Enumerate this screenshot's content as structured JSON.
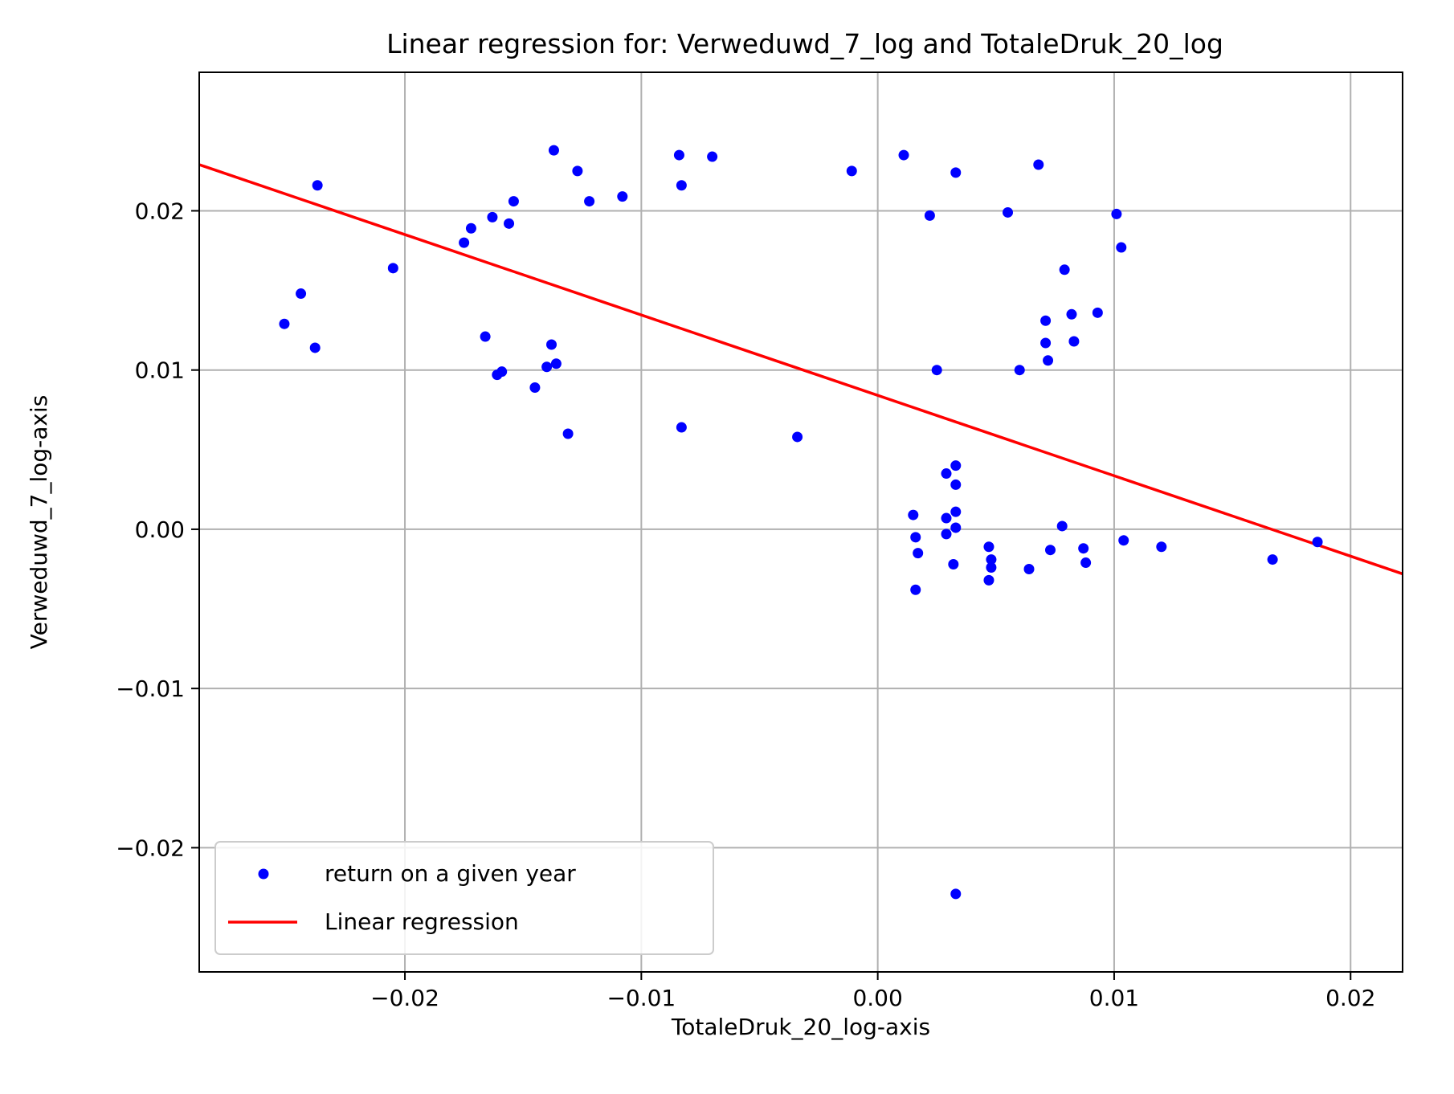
{
  "chart_data": {
    "type": "scatter",
    "title": "Linear regression for: Verweduwd_7_log and TotaleDruk_20_log",
    "xlabel": "TotaleDruk_20_log-axis",
    "ylabel": "Verweduwd_7_log-axis",
    "xlim": [
      -0.0287,
      0.0222
    ],
    "ylim": [
      -0.0278,
      0.0287
    ],
    "x_ticks": [
      -0.02,
      -0.01,
      0.0,
      0.01,
      0.02
    ],
    "x_tick_labels": [
      "−0.02",
      "−0.01",
      "0.00",
      "0.01",
      "0.02"
    ],
    "y_ticks": [
      -0.02,
      -0.01,
      0.0,
      0.01,
      0.02
    ],
    "y_tick_labels": [
      "−0.02",
      "−0.01",
      "0.00",
      "0.01",
      "0.02"
    ],
    "grid": true,
    "legend_position": "lower-left",
    "series": [
      {
        "name": "return on a given year",
        "kind": "scatter",
        "color": "#0000ff",
        "x": [
          -0.0237,
          -0.0251,
          -0.0244,
          -0.0238,
          -0.0205,
          -0.0175,
          -0.0172,
          -0.0163,
          -0.0166,
          -0.0156,
          -0.0154,
          -0.0161,
          -0.0159,
          -0.0145,
          -0.0137,
          -0.0127,
          -0.0122,
          -0.0108,
          -0.014,
          -0.0138,
          -0.0136,
          -0.0131,
          -0.0084,
          -0.0083,
          -0.007,
          -0.0083,
          -0.0034,
          -0.0011,
          0.0011,
          0.0033,
          0.0022,
          0.0025,
          0.0055,
          0.006,
          0.0068,
          0.0101,
          0.0103,
          0.0079,
          0.0071,
          0.0071,
          0.0072,
          0.0082,
          0.0083,
          0.0093,
          0.0029,
          0.0033,
          0.0033,
          0.0015,
          0.0029,
          0.0033,
          0.0016,
          0.0017,
          0.0029,
          0.0033,
          0.0032,
          0.0016,
          0.0047,
          0.0048,
          0.0048,
          0.0047,
          0.0064,
          0.0073,
          0.0078,
          0.0087,
          0.0088,
          0.0104,
          0.012,
          0.0167,
          0.0186,
          0.0033
        ],
        "y": [
          0.0216,
          0.0129,
          0.0148,
          0.0114,
          0.0164,
          0.018,
          0.0189,
          0.0196,
          0.0121,
          0.0192,
          0.0206,
          0.0097,
          0.0099,
          0.0089,
          0.0238,
          0.0225,
          0.0206,
          0.0209,
          0.0102,
          0.0116,
          0.0104,
          0.006,
          0.0235,
          0.0216,
          0.0234,
          0.0064,
          0.0058,
          0.0225,
          0.0235,
          0.0224,
          0.0197,
          0.01,
          0.0199,
          0.01,
          0.0229,
          0.0198,
          0.0177,
          0.0163,
          0.0131,
          0.0117,
          0.0106,
          0.0135,
          0.0118,
          0.0136,
          0.0035,
          0.004,
          0.0028,
          0.0009,
          0.0007,
          0.0011,
          -0.0005,
          -0.0015,
          -0.0003,
          0.0001,
          -0.0022,
          -0.0038,
          -0.0011,
          -0.0019,
          -0.0024,
          -0.0032,
          -0.0025,
          -0.0013,
          0.0002,
          -0.0012,
          -0.0021,
          -0.0007,
          -0.0011,
          -0.0019,
          -0.0008,
          -0.0229
        ]
      },
      {
        "name": "Linear regression",
        "kind": "line",
        "color": "#ff0000",
        "x": [
          -0.0287,
          0.0222
        ],
        "y": [
          0.0229,
          -0.0028
        ]
      }
    ]
  }
}
